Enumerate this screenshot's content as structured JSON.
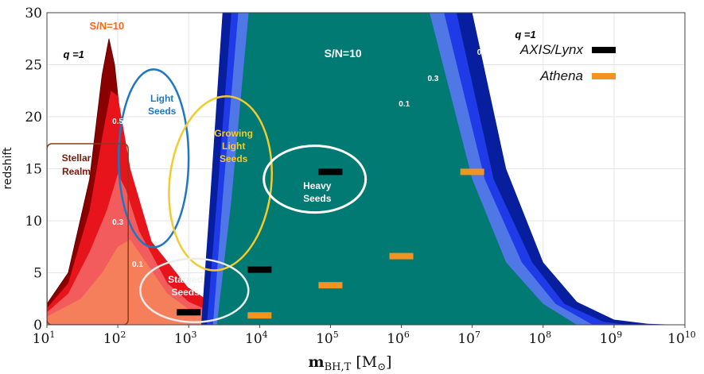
{
  "chart_data": {
    "type": "area",
    "xlabel": "m_BH,T [M⊙]",
    "ylabel": "redshift",
    "xscale": "log",
    "xlim": [
      10,
      10000000000
    ],
    "ylim": [
      0,
      30
    ],
    "x_ticks": [
      {
        "base": "10",
        "exp": "1"
      },
      {
        "base": "10",
        "exp": "2"
      },
      {
        "base": "10",
        "exp": "3"
      },
      {
        "base": "10",
        "exp": "4"
      },
      {
        "base": "10",
        "exp": "5"
      },
      {
        "base": "10",
        "exp": "6"
      },
      {
        "base": "10",
        "exp": "7"
      },
      {
        "base": "10",
        "exp": "8"
      },
      {
        "base": "10",
        "exp": "9"
      },
      {
        "base": "10",
        "exp": "10"
      }
    ],
    "y_ticks": [
      "0",
      "5",
      "10",
      "15",
      "20",
      "25",
      "30"
    ],
    "grid": true,
    "colors": {
      "stellar_q1": "#8b0000",
      "stellar_q05": "#e8141b",
      "stellar_q03": "#f25c5c",
      "stellar_q01": "#f47f5a",
      "xray_q1": "#071f9e",
      "xray_q05": "#1f3be8",
      "xray_q03": "#4f77e6",
      "xray_q01": "#007a73",
      "axis_lynx": "#000000",
      "athena": "#f39322",
      "light_seeds": "#1f77c4",
      "growing_seeds": "#f2cb2c",
      "heavy_seeds": "#ffffff",
      "starved_seeds": "#ececec",
      "stellar_realm": "#8b3a1a"
    },
    "series": [
      {
        "name": "q =1",
        "group": "S/N=10 (left)",
        "x": [
          10,
          20,
          40,
          60,
          75,
          90,
          120,
          200,
          500,
          1000,
          2000,
          5000,
          10000
        ],
        "y": [
          2,
          5,
          14,
          24,
          27.5,
          25,
          17,
          10,
          5,
          3.5,
          2.2,
          0.8,
          0.1
        ]
      },
      {
        "name": "0.5",
        "group": "S/N=10 (left)",
        "x": [
          10,
          20,
          40,
          60,
          80,
          100,
          150,
          300,
          1000,
          3000,
          7000,
          10000
        ],
        "y": [
          1.6,
          4,
          11,
          18,
          22.5,
          22,
          15,
          8,
          3.5,
          1.5,
          0.4,
          0
        ]
      },
      {
        "name": "0.3",
        "group": "S/N=10 (left)",
        "x": [
          10,
          20,
          40,
          70,
          100,
          130,
          200,
          500,
          1000,
          3000,
          8000
        ],
        "y": [
          1.2,
          3,
          7,
          11,
          14.5,
          13,
          9,
          4,
          2.2,
          0.8,
          0
        ]
      },
      {
        "name": "0.1",
        "group": "S/N=10 (left)",
        "x": [
          10,
          30,
          60,
          100,
          150,
          250,
          500,
          1000,
          3000,
          6000
        ],
        "y": [
          0.8,
          2.5,
          5,
          7.5,
          8.2,
          6,
          3,
          1.5,
          0.4,
          0
        ]
      },
      {
        "name": "q =1",
        "group": "S/N=10 (right)",
        "x_left": [
          1500,
          2000,
          3000
        ],
        "y_left": [
          0,
          12,
          30
        ],
        "x_right": [
          10000000,
          30000000,
          100000000,
          300000000,
          1000000000,
          3000000000,
          8000000000
        ],
        "y_right": [
          30,
          15,
          6,
          2.2,
          0.5,
          0.1,
          0
        ]
      },
      {
        "name": "0.5",
        "group": "S/N=10 (right)",
        "x_left": [
          1800,
          2500,
          4000
        ],
        "y_left": [
          0,
          12,
          30
        ],
        "x_right": [
          6000000,
          20000000,
          70000000,
          200000000,
          700000000,
          1500000000
        ],
        "y_right": [
          30,
          14,
          6,
          2,
          0.3,
          0
        ]
      },
      {
        "name": "0.3",
        "group": "S/N=10 (right)",
        "x_left": [
          2200,
          3000,
          5000
        ],
        "y_left": [
          0,
          12,
          30
        ],
        "x_right": [
          4000000,
          15000000,
          50000000,
          150000000,
          500000000
        ],
        "y_right": [
          30,
          14,
          6,
          2,
          0
        ]
      },
      {
        "name": "0.1",
        "group": "S/N=10 (right)",
        "x_left": [
          2500,
          4000,
          7000
        ],
        "y_left": [
          0,
          12,
          30
        ],
        "x_right": [
          2500000,
          10000000,
          30000000,
          100000000,
          300000000
        ],
        "y_right": [
          30,
          14,
          6,
          2,
          0
        ]
      }
    ],
    "points": [
      {
        "mission": "AXIS/Lynx",
        "x": 1000,
        "y": 1.2
      },
      {
        "mission": "AXIS/Lynx",
        "x": 10000,
        "y": 5.3
      },
      {
        "mission": "AXIS/Lynx",
        "x": 100000,
        "y": 14.7
      },
      {
        "mission": "Athena",
        "x": 10000,
        "y": 0.9
      },
      {
        "mission": "Athena",
        "x": 100000,
        "y": 3.8
      },
      {
        "mission": "Athena",
        "x": 1000000,
        "y": 6.6
      },
      {
        "mission": "Athena",
        "x": 10000000,
        "y": 14.7
      }
    ],
    "legend": [
      {
        "label": "AXIS/Lynx",
        "color": "#000000"
      },
      {
        "label": "Athena",
        "color": "#f39322"
      }
    ],
    "legend_placement": "top-right",
    "annotations": {
      "sn_left": "S/N=10",
      "sn_right": "S/N=10",
      "q_left": "q =1",
      "q_right": "q =1",
      "red_05": "0.5",
      "red_03": "0.3",
      "red_01": "0.1",
      "blue_05": "0.5",
      "blue_03": "0.3",
      "blue_01": "0.1",
      "light_seeds": [
        "Light",
        "Seeds"
      ],
      "growing_seeds": [
        "Growing",
        "Light",
        "Seeds"
      ],
      "heavy_seeds": [
        "Heavy",
        "Seeds"
      ],
      "starved_seeds": [
        "Starved",
        "Seeds"
      ],
      "stellar_realm": [
        "Stellar",
        "Realm"
      ]
    }
  }
}
